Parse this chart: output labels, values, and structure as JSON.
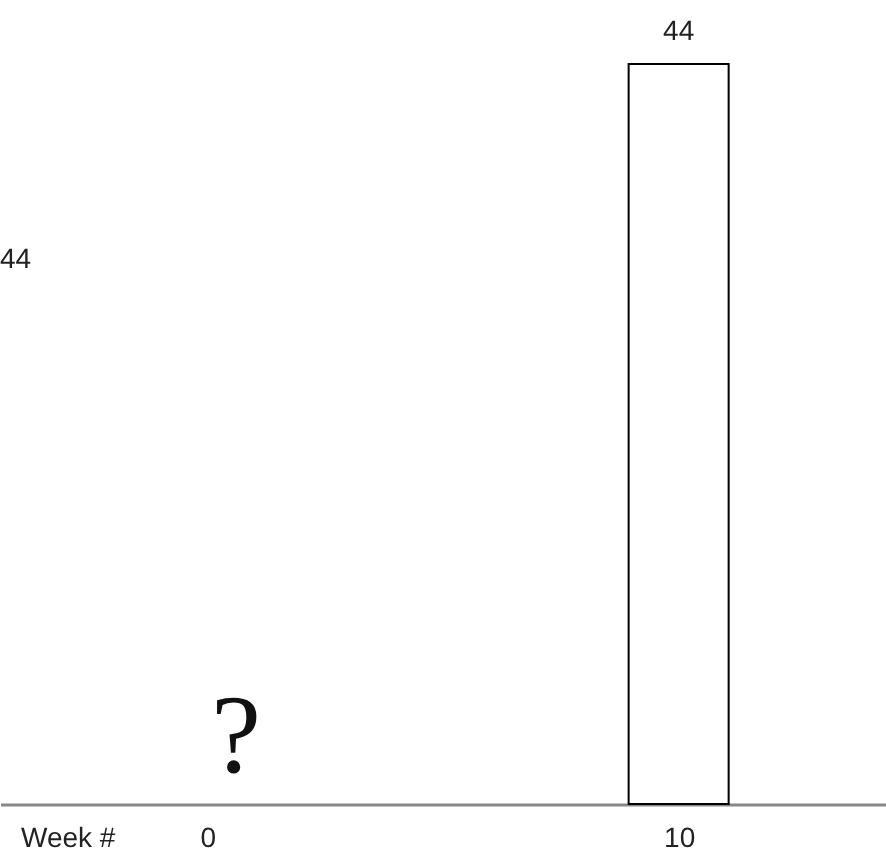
{
  "chart_data": {
    "type": "bar",
    "categories": [
      "0",
      "10"
    ],
    "values": [
      null,
      44
    ],
    "color": "#ffffff",
    "data_labels": true,
    "xlabel": "Week #",
    "annotations": [
      "44",
      "?"
    ]
  }
}
